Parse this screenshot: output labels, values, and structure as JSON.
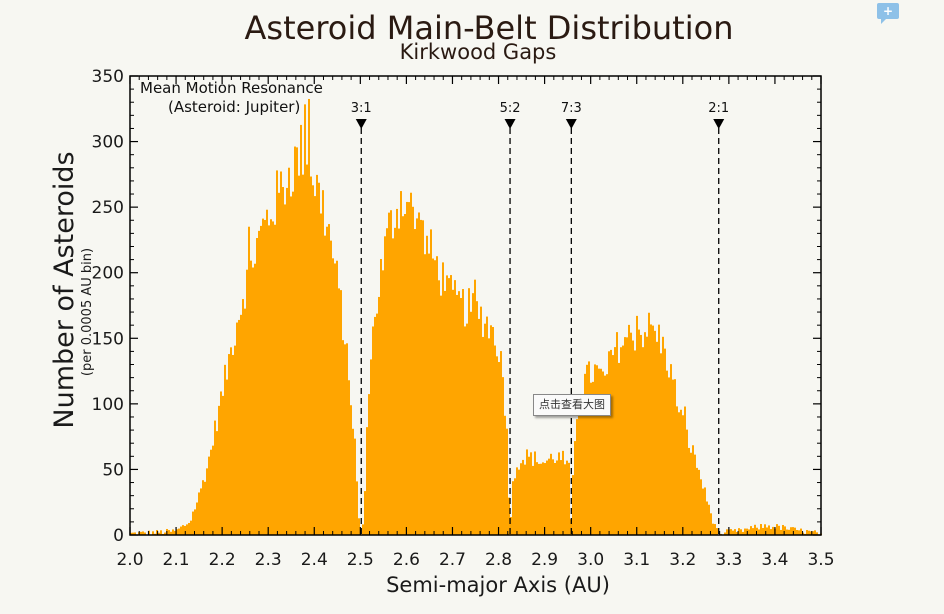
{
  "ui": {
    "comment_button_label": "+",
    "tooltip_text": "点击查看大图"
  },
  "colors": {
    "bar_fill": "#ffa500",
    "axes": "#000000",
    "title": "#2a1a12",
    "background": "#f7f7f2"
  },
  "chart_data": {
    "type": "bar",
    "title": "Asteroid Main-Belt Distribution",
    "subtitle": "Kirkwood Gaps",
    "xlabel": "Semi-major Axis (AU)",
    "ylabel": "Number of Asteroids",
    "ylabel_sub": "(per 0.0005 AU bin)",
    "xlim": [
      2.0,
      3.5
    ],
    "ylim": [
      0,
      350
    ],
    "bin_width": 0.0005,
    "x_ticks": [
      "2.0",
      "2.1",
      "2.2",
      "2.3",
      "2.4",
      "2.5",
      "2.6",
      "2.7",
      "2.8",
      "2.9",
      "3.0",
      "3.1",
      "3.2",
      "3.3",
      "3.4",
      "3.5"
    ],
    "y_ticks": [
      "0",
      "50",
      "100",
      "150",
      "200",
      "250",
      "300",
      "350"
    ],
    "annotation_line1": "Mean Motion Resonance",
    "annotation_line2": "(Asteroid: Jupiter)",
    "resonances": [
      {
        "label": "3:1",
        "x": 2.502
      },
      {
        "label": "5:2",
        "x": 2.825
      },
      {
        "label": "7:3",
        "x": 2.958
      },
      {
        "label": "2:1",
        "x": 3.278
      }
    ],
    "envelope": [
      [
        2.0,
        1
      ],
      [
        2.06,
        2
      ],
      [
        2.1,
        3
      ],
      [
        2.13,
        10
      ],
      [
        2.15,
        30
      ],
      [
        2.17,
        55
      ],
      [
        2.19,
        90
      ],
      [
        2.21,
        125
      ],
      [
        2.23,
        160
      ],
      [
        2.25,
        190
      ],
      [
        2.27,
        215
      ],
      [
        2.29,
        235
      ],
      [
        2.31,
        250
      ],
      [
        2.33,
        265
      ],
      [
        2.35,
        278
      ],
      [
        2.37,
        290
      ],
      [
        2.38,
        300
      ],
      [
        2.39,
        292
      ],
      [
        2.4,
        270
      ],
      [
        2.42,
        250
      ],
      [
        2.44,
        215
      ],
      [
        2.46,
        170
      ],
      [
        2.48,
        105
      ],
      [
        2.49,
        55
      ],
      [
        2.497,
        12
      ],
      [
        2.502,
        0
      ],
      [
        2.508,
        12
      ],
      [
        2.52,
        130
      ],
      [
        2.54,
        190
      ],
      [
        2.56,
        230
      ],
      [
        2.58,
        250
      ],
      [
        2.59,
        258
      ],
      [
        2.6,
        255
      ],
      [
        2.62,
        240
      ],
      [
        2.64,
        225
      ],
      [
        2.66,
        210
      ],
      [
        2.68,
        195
      ],
      [
        2.7,
        180
      ],
      [
        2.72,
        175
      ],
      [
        2.74,
        172
      ],
      [
        2.76,
        168
      ],
      [
        2.78,
        160
      ],
      [
        2.8,
        145
      ],
      [
        2.81,
        120
      ],
      [
        2.82,
        70
      ],
      [
        2.825,
        2
      ],
      [
        2.83,
        35
      ],
      [
        2.84,
        55
      ],
      [
        2.86,
        60
      ],
      [
        2.88,
        58
      ],
      [
        2.9,
        55
      ],
      [
        2.92,
        60
      ],
      [
        2.94,
        58
      ],
      [
        2.953,
        50
      ],
      [
        2.958,
        3
      ],
      [
        2.963,
        60
      ],
      [
        2.97,
        95
      ],
      [
        2.99,
        120
      ],
      [
        3.01,
        125
      ],
      [
        3.03,
        118
      ],
      [
        3.05,
        140
      ],
      [
        3.07,
        148
      ],
      [
        3.09,
        152
      ],
      [
        3.11,
        155
      ],
      [
        3.13,
        158
      ],
      [
        3.15,
        150
      ],
      [
        3.17,
        130
      ],
      [
        3.19,
        100
      ],
      [
        3.21,
        75
      ],
      [
        3.23,
        55
      ],
      [
        3.25,
        30
      ],
      [
        3.265,
        12
      ],
      [
        3.278,
        0
      ],
      [
        3.29,
        2
      ],
      [
        3.32,
        3
      ],
      [
        3.35,
        5
      ],
      [
        3.38,
        7
      ],
      [
        3.41,
        6
      ],
      [
        3.44,
        4
      ],
      [
        3.46,
        3
      ],
      [
        3.48,
        2
      ],
      [
        3.5,
        1
      ]
    ]
  }
}
